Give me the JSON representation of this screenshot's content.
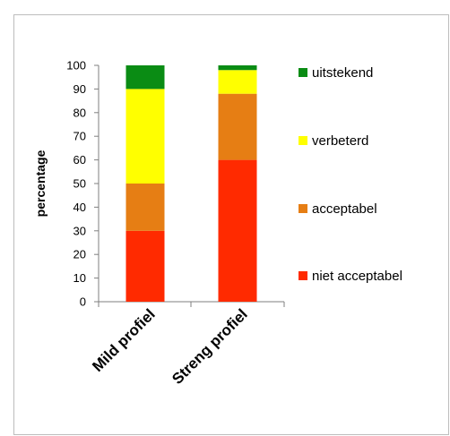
{
  "chart_data": {
    "type": "bar",
    "stacked": true,
    "title": "",
    "xlabel": "",
    "ylabel": "percentage",
    "ylim": [
      0,
      100
    ],
    "yticks": [
      0,
      10,
      20,
      30,
      40,
      50,
      60,
      70,
      80,
      90,
      100
    ],
    "grid": false,
    "legend_position": "right",
    "categories": [
      "Mild profiel",
      "Streng profiel"
    ],
    "series": [
      {
        "name": "niet acceptabel",
        "color": "#ff2a00",
        "values": [
          30,
          60
        ]
      },
      {
        "name": "acceptabel",
        "color": "#e67e14",
        "values": [
          20,
          28
        ]
      },
      {
        "name": "verbeterd",
        "color": "#ffff00",
        "values": [
          40,
          10
        ]
      },
      {
        "name": "uitstekend",
        "color": "#0a8c14",
        "values": [
          10,
          2
        ]
      }
    ]
  }
}
